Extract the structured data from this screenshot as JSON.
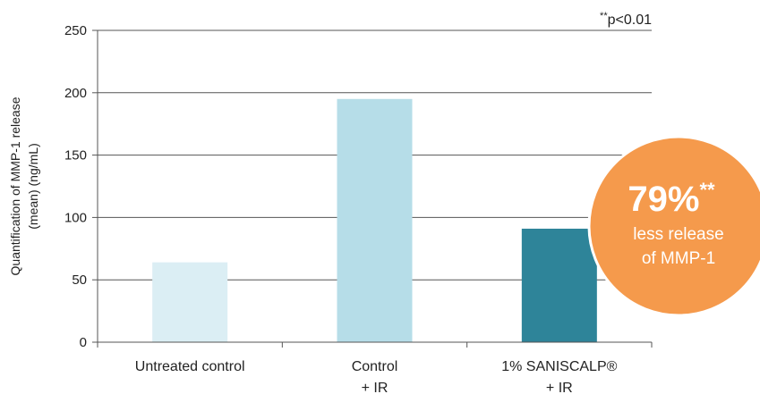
{
  "chart_data": {
    "type": "bar",
    "categories": [
      [
        "Untreated control"
      ],
      [
        "Control",
        "+ IR"
      ],
      [
        "1% SANISCALP®",
        "+ IR"
      ]
    ],
    "values": [
      64,
      195,
      91
    ],
    "colors": [
      "#dbeef4",
      "#b6dde8",
      "#2e8499"
    ],
    "ylabel_lines": [
      "Quantification of MMP-1 release",
      "(mean) (ng/mL)"
    ],
    "ylim": [
      0,
      250
    ],
    "yticks": [
      0,
      50,
      100,
      150,
      200,
      250
    ],
    "grid": true,
    "significance_note": {
      "stars": "**",
      "text": "p<0.01"
    },
    "callout": {
      "value": "79%",
      "stars": "**",
      "line1": "less release",
      "line2": "of MMP-1",
      "color": "#f59a4c"
    }
  }
}
